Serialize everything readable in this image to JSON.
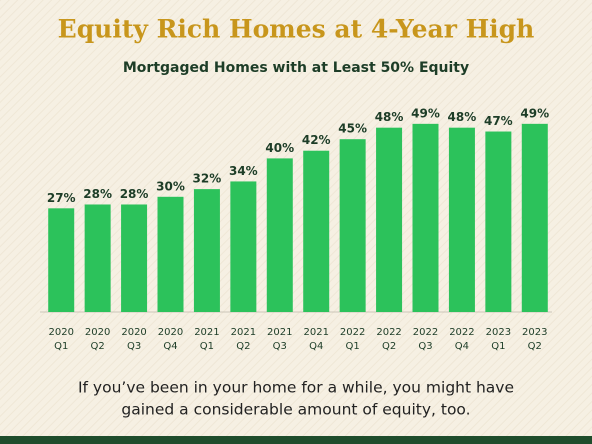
{
  "chart_data": {
    "type": "bar",
    "title": "Equity Rich Homes at 4-Year High",
    "subtitle": "Mortgaged Homes with at Least 50% Equity",
    "categories": [
      [
        "2020",
        "Q1"
      ],
      [
        "2020",
        "Q2"
      ],
      [
        "2020",
        "Q3"
      ],
      [
        "2020",
        "Q4"
      ],
      [
        "2021",
        "Q1"
      ],
      [
        "2021",
        "Q2"
      ],
      [
        "2021",
        "Q3"
      ],
      [
        "2021",
        "Q4"
      ],
      [
        "2022",
        "Q1"
      ],
      [
        "2022",
        "Q2"
      ],
      [
        "2022",
        "Q3"
      ],
      [
        "2022",
        "Q4"
      ],
      [
        "2023",
        "Q1"
      ],
      [
        "2023",
        "Q2"
      ]
    ],
    "values": [
      27,
      28,
      28,
      30,
      32,
      34,
      40,
      42,
      45,
      48,
      49,
      48,
      47,
      49
    ],
    "value_labels": [
      "27%",
      "28%",
      "28%",
      "30%",
      "32%",
      "34%",
      "40%",
      "42%",
      "45%",
      "48%",
      "49%",
      "48%",
      "47%",
      "49%"
    ],
    "color": "#2cc25b",
    "ylim": [
      0,
      50
    ],
    "footnote": [
      "If you’ve been in your home for a while, you might have",
      "gained a considerable amount of equity, too."
    ]
  }
}
